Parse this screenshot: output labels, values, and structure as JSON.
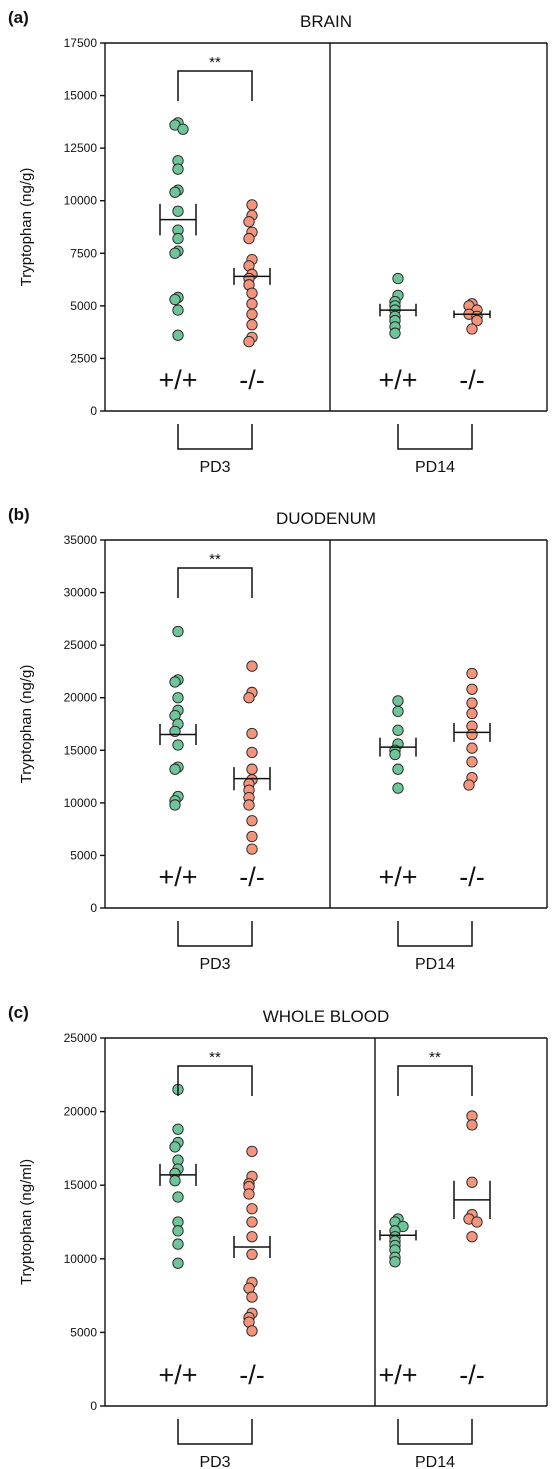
{
  "colors": {
    "wildtype": "#6fc49a",
    "knockout": "#f2957c",
    "stroke": "#222222"
  },
  "chart_data": [
    {
      "type": "scatter",
      "panel": "(a)",
      "title": "BRAIN",
      "ylabel": "Tryptophan (ng/g)",
      "ylim": [
        0,
        17500
      ],
      "yticks": [
        "0",
        "2500",
        "5000",
        "7500",
        "10000",
        "12500",
        "15000",
        "17500"
      ],
      "groups": [
        {
          "age": "PD3",
          "label": "+/+",
          "genotype": "wildtype",
          "mean": 9100,
          "sem": 750,
          "values": [
            13700,
            13600,
            13400,
            11900,
            11500,
            10500,
            10400,
            9500,
            8600,
            8200,
            7600,
            7500,
            5400,
            5300,
            4800,
            3600
          ]
        },
        {
          "age": "PD3",
          "label": "-/-",
          "genotype": "knockout",
          "mean": 6400,
          "sem": 400,
          "values": [
            9800,
            9300,
            9000,
            8500,
            8200,
            7200,
            6900,
            6500,
            6300,
            6000,
            5600,
            5100,
            4600,
            4100,
            3500,
            3300
          ]
        },
        {
          "age": "PD14",
          "label": "+/+",
          "genotype": "wildtype",
          "mean": 4800,
          "sem": 300,
          "values": [
            6300,
            5500,
            5200,
            5000,
            4800,
            4500,
            4300,
            4000,
            3700
          ]
        },
        {
          "age": "PD14",
          "label": "-/-",
          "genotype": "knockout",
          "mean": 4600,
          "sem": 180,
          "values": [
            5100,
            5000,
            4800,
            4600,
            4500,
            4300,
            3900
          ]
        }
      ],
      "significance": [
        {
          "age": "PD3",
          "label": "**"
        }
      ]
    },
    {
      "type": "scatter",
      "panel": "(b)",
      "title": "DUODENUM",
      "ylabel": "Tryptophan (ng/g)",
      "ylim": [
        0,
        35000
      ],
      "yticks": [
        "0",
        "5000",
        "10000",
        "15000",
        "20000",
        "25000",
        "30000",
        "35000"
      ],
      "groups": [
        {
          "age": "PD3",
          "label": "+/+",
          "genotype": "wildtype",
          "mean": 16500,
          "sem": 1000,
          "values": [
            26300,
            21700,
            21500,
            20000,
            18800,
            18300,
            17500,
            16800,
            15500,
            13400,
            13200,
            10600,
            10200,
            9800
          ]
        },
        {
          "age": "PD3",
          "label": "-/-",
          "genotype": "knockout",
          "mean": 12300,
          "sem": 1100,
          "values": [
            23000,
            20500,
            20000,
            16600,
            14800,
            13200,
            12200,
            11800,
            11200,
            10500,
            9800,
            8300,
            6800,
            5600
          ]
        },
        {
          "age": "PD14",
          "label": "+/+",
          "genotype": "wildtype",
          "mean": 15300,
          "sem": 900,
          "values": [
            19700,
            18700,
            16900,
            15600,
            15000,
            14600,
            13200,
            11400
          ]
        },
        {
          "age": "PD14",
          "label": "-/-",
          "genotype": "knockout",
          "mean": 16700,
          "sem": 900,
          "values": [
            22300,
            20800,
            19500,
            18500,
            17300,
            16500,
            15200,
            13900,
            12400,
            11700
          ]
        }
      ],
      "significance": [
        {
          "age": "PD3",
          "label": "**"
        }
      ]
    },
    {
      "type": "scatter",
      "panel": "(c)",
      "title": "WHOLE BLOOD",
      "ylabel": "Tryptophan (ng/ml)",
      "ylim": [
        0,
        25000
      ],
      "yticks": [
        "0",
        "5000",
        "10000",
        "15000",
        "20000",
        "25000"
      ],
      "groups": [
        {
          "age": "PD3",
          "label": "+/+",
          "genotype": "wildtype",
          "mean": 15700,
          "sem": 750,
          "values": [
            21500,
            18800,
            17900,
            17600,
            16700,
            16100,
            15800,
            15300,
            14200,
            12500,
            11900,
            11000,
            9700
          ]
        },
        {
          "age": "PD3",
          "label": "-/-",
          "genotype": "knockout",
          "mean": 10800,
          "sem": 750,
          "values": [
            17300,
            15600,
            15100,
            14900,
            14400,
            13400,
            12500,
            11500,
            10300,
            8400,
            8000,
            7400,
            6300,
            6000,
            5700,
            5100
          ]
        },
        {
          "age": "PD14",
          "label": "+/+",
          "genotype": "wildtype",
          "mean": 11600,
          "sem": 350,
          "values": [
            12700,
            12500,
            12200,
            11900,
            11500,
            11200,
            10900,
            10600,
            10100,
            9800
          ]
        },
        {
          "age": "PD14",
          "label": "-/-",
          "genotype": "knockout",
          "mean": 14000,
          "sem": 1300,
          "values": [
            19700,
            19100,
            15200,
            13000,
            12700,
            12500,
            11500
          ]
        }
      ],
      "significance": [
        {
          "age": "PD3",
          "label": "**"
        },
        {
          "age": "PD14",
          "label": "**"
        }
      ]
    }
  ]
}
